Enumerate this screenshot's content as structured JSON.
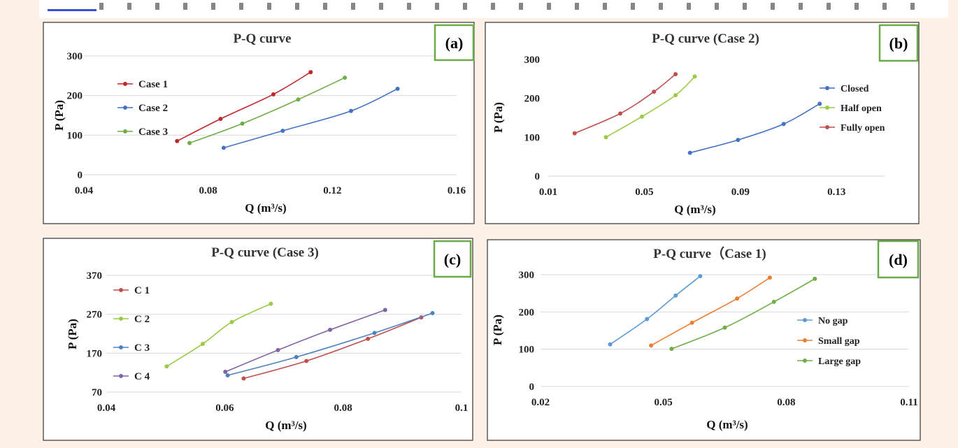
{
  "colors": {
    "case1": "#c0282d",
    "case2": "#4472c4",
    "case3": "#70ad47",
    "closed": "#4472c4",
    "half_open": "#9bcb46",
    "fully_open": "#c0504d",
    "c1": "#c0504d",
    "c2": "#9bcb46",
    "c3": "#4f81bd",
    "c4": "#8064a2",
    "no_gap": "#5b9bd5",
    "small_gap": "#ed7d31",
    "large_gap": "#70ad47",
    "badge_border": "#6aaa4b"
  },
  "chart_data": [
    {
      "id": "a",
      "badge": "(a)",
      "type": "line",
      "title": "P-Q curve",
      "xlabel": "Q (m³/s)",
      "ylabel": "P (Pa)",
      "xlim": [
        0.04,
        0.16
      ],
      "ylim": [
        0,
        300
      ],
      "xticks": [
        "0.04",
        "0.08",
        "0.12",
        "0.16"
      ],
      "xtick_values": [
        0.04,
        0.08,
        0.12,
        0.16
      ],
      "yticks": [
        "0",
        "100",
        "200",
        "300"
      ],
      "ytick_values": [
        0,
        100,
        200,
        300
      ],
      "grid": true,
      "legend_position": "top-left",
      "series": [
        {
          "name": "Case 1",
          "color_key": "case1",
          "x": [
            0.07,
            0.084,
            0.101,
            0.113
          ],
          "y": [
            85,
            141,
            203,
            259
          ]
        },
        {
          "name": "Case 2",
          "color_key": "case2",
          "x": [
            0.085,
            0.104,
            0.126,
            0.141
          ],
          "y": [
            68,
            111,
            161,
            217
          ]
        },
        {
          "name": "Case 3",
          "color_key": "case3",
          "x": [
            0.074,
            0.091,
            0.109,
            0.124
          ],
          "y": [
            80,
            129,
            190,
            245
          ]
        }
      ]
    },
    {
      "id": "b",
      "badge": "(b)",
      "type": "line",
      "title": "P-Q curve (Case 2)",
      "xlabel": "Q (m³/s)",
      "ylabel": "P (Pa)",
      "xlim": [
        0.01,
        0.15
      ],
      "ylim": [
        0,
        300
      ],
      "xticks": [
        "0.01",
        "0.05",
        "0.09",
        "0.13"
      ],
      "xtick_values": [
        0.01,
        0.05,
        0.09,
        0.13
      ],
      "yticks": [
        "0",
        "100",
        "200",
        "300"
      ],
      "ytick_values": [
        0,
        100,
        200,
        300
      ],
      "grid": false,
      "legend_position": "right",
      "series": [
        {
          "name": "Closed",
          "color_key": "closed",
          "x": [
            0.069,
            0.089,
            0.108,
            0.123
          ],
          "y": [
            60,
            93,
            134,
            186
          ]
        },
        {
          "name": "Half open",
          "color_key": "half_open",
          "x": [
            0.034,
            0.049,
            0.063,
            0.071
          ],
          "y": [
            100,
            153,
            208,
            256
          ]
        },
        {
          "name": "Fully open",
          "color_key": "fully_open",
          "x": [
            0.021,
            0.04,
            0.054,
            0.063
          ],
          "y": [
            110,
            161,
            217,
            262
          ]
        }
      ]
    },
    {
      "id": "c",
      "badge": "(c)",
      "type": "line",
      "title": "P-Q curve (Case 3)",
      "xlabel": "Q (m³/s)",
      "ylabel": "P (Pa)",
      "xlim": [
        0.04,
        0.1
      ],
      "ylim": [
        70,
        370
      ],
      "xticks": [
        "0.04",
        "0.06",
        "0.08",
        "0.1"
      ],
      "xtick_values": [
        0.04,
        0.06,
        0.08,
        0.1
      ],
      "yticks": [
        "70",
        "170",
        "270",
        "370"
      ],
      "ytick_values": [
        70,
        170,
        270,
        370
      ],
      "grid": true,
      "legend_position": "left",
      "series": [
        {
          "name": "C 1",
          "color_key": "c1",
          "x": [
            0.0632,
            0.0738,
            0.0842,
            0.0932
          ],
          "y": [
            105,
            150,
            207,
            262
          ]
        },
        {
          "name": "C 2",
          "color_key": "c2",
          "x": [
            0.0502,
            0.0563,
            0.0612,
            0.0678
          ],
          "y": [
            136,
            194,
            250,
            297
          ]
        },
        {
          "name": "C 3",
          "color_key": "c3",
          "x": [
            0.0605,
            0.0721,
            0.0853,
            0.0951
          ],
          "y": [
            113,
            160,
            222,
            273
          ]
        },
        {
          "name": "C 4",
          "color_key": "c4",
          "x": [
            0.0601,
            0.069,
            0.0778,
            0.0871
          ],
          "y": [
            122,
            178,
            230,
            281
          ]
        }
      ]
    },
    {
      "id": "d",
      "badge": "(d)",
      "type": "line",
      "title": "P-Q curve（Case 1)",
      "xlabel": "Q (m³/s)",
      "ylabel": "P (Pa)",
      "xlim": [
        0.02,
        0.11
      ],
      "ylim": [
        0,
        300
      ],
      "xticks": [
        "0.02",
        "0.05",
        "0.08",
        "0.11"
      ],
      "xtick_values": [
        0.02,
        0.05,
        0.08,
        0.11
      ],
      "yticks": [
        "0",
        "100",
        "200",
        "300"
      ],
      "ytick_values": [
        0,
        100,
        200,
        300
      ],
      "grid": true,
      "legend_position": "right",
      "series": [
        {
          "name": "No gap",
          "color_key": "no_gap",
          "x": [
            0.037,
            0.046,
            0.053,
            0.059
          ],
          "y": [
            113,
            181,
            244,
            296
          ]
        },
        {
          "name": "Small gap",
          "color_key": "small_gap",
          "x": [
            0.047,
            0.057,
            0.068,
            0.076
          ],
          "y": [
            110,
            171,
            236,
            292
          ]
        },
        {
          "name": "Large gap",
          "color_key": "large_gap",
          "x": [
            0.052,
            0.065,
            0.077,
            0.087
          ],
          "y": [
            101,
            158,
            227,
            289
          ]
        }
      ]
    }
  ]
}
